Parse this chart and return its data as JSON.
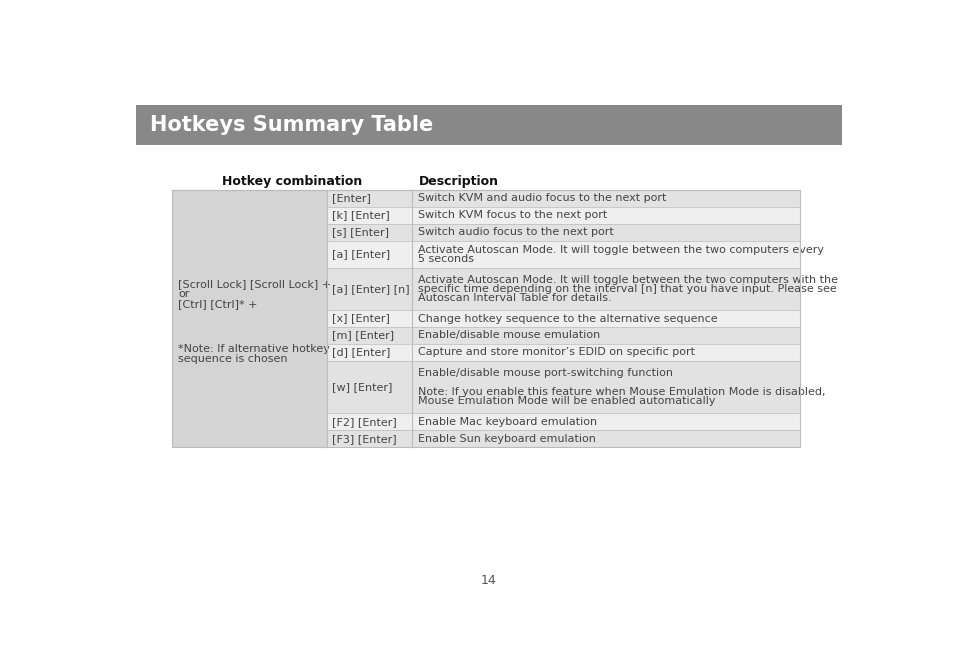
{
  "title": "Hotkeys Summary Table",
  "title_bg": "#888888",
  "title_color": "#ffffff",
  "title_fontsize": 15,
  "header_col1": "Hotkey combination",
  "header_col2": "Description",
  "page_number": "14",
  "bg_color": "#ffffff",
  "left_cell_bg": "#d4d4d4",
  "left_label_main": "[Scroll Lock] [Scroll Lock] +\nor\n[Ctrl] [Ctrl]* +",
  "left_label_note": "*Note: If alternative hotkey\nsequence is chosen",
  "table_rows": [
    {
      "key": "[Enter]",
      "desc": "Switch KVM and audio focus to the next port",
      "shade": "#e2e2e2"
    },
    {
      "key": "[k] [Enter]",
      "desc": "Switch KVM focus to the next port",
      "shade": "#efefef"
    },
    {
      "key": "[s] [Enter]",
      "desc": "Switch audio focus to the next port",
      "shade": "#e2e2e2"
    },
    {
      "key": "[a] [Enter]",
      "desc": "Activate Autoscan Mode. It will toggle between the two computers every\n5 seconds",
      "shade": "#efefef"
    },
    {
      "key": "[a] [Enter] [n]",
      "desc": "Activate Autoscan Mode. It will toggle between the two computers with the\nspecific time depending on the interval [n] that you have input. Please see\nAutoscan Interval Table for details.",
      "shade": "#e2e2e2"
    },
    {
      "key": "[x] [Enter]",
      "desc": "Change hotkey sequence to the alternative sequence",
      "shade": "#efefef"
    },
    {
      "key": "[m] [Enter]",
      "desc": "Enable/disable mouse emulation",
      "shade": "#e2e2e2"
    },
    {
      "key": "[d] [Enter]",
      "desc": "Capture and store monitor’s EDID on specific port",
      "shade": "#efefef"
    },
    {
      "key": "[w] [Enter]",
      "desc": "Enable/disable mouse port-switching function\n\nNote: If you enable this feature when Mouse Emulation Mode is disabled,\nMouse Emulation Mode will be enabled automatically",
      "shade": "#e2e2e2"
    },
    {
      "key": "[F2] [Enter]",
      "desc": "Enable Mac keyboard emulation",
      "shade": "#efefef"
    },
    {
      "key": "[F3] [Enter]",
      "desc": "Enable Sun keyboard emulation",
      "shade": "#e2e2e2"
    }
  ]
}
